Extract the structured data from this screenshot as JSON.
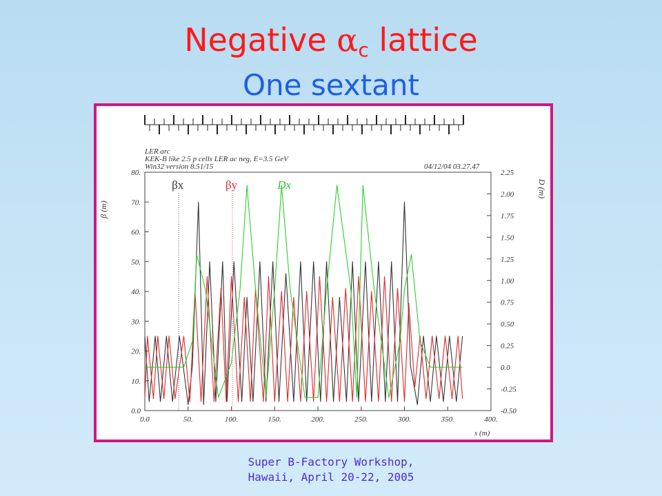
{
  "slide": {
    "title_prefix": "Negative ",
    "title_symbol": "α",
    "title_subscript": "c",
    "title_suffix": " lattice",
    "subtitle": "One sextant",
    "footer_line1": "Super B-Factory Workshop,",
    "footer_line2": "Hawaii, April 20-22, 2005"
  },
  "plot_header": {
    "line1": "LER arc",
    "line2": "KEK-B like 2.5 p cells LER ac neg, E=3.5 GeV",
    "line3": "Win32 version 8.51/15",
    "datestamp": "04/12/04  03.27.47"
  },
  "chart_data": {
    "type": "line",
    "xlabel": "s (m)",
    "ylabel_left": "β (m)",
    "ylabel_right": "D (m)",
    "xlim": [
      0,
      400
    ],
    "ylim_left": [
      0,
      80
    ],
    "ylim_right": [
      -0.5,
      2.25
    ],
    "x_ticks": [
      "0.0",
      "50.",
      "100.",
      "150.",
      "200.",
      "250.",
      "300.",
      "350.",
      "400."
    ],
    "y_left_ticks": [
      "0.0",
      "10.",
      "20.",
      "30.",
      "40.",
      "50.",
      "60.",
      "70.",
      "80."
    ],
    "y_right_ticks": [
      "-0.50",
      "-0.25",
      "0.0",
      "0.25",
      "0.50",
      "0.75",
      "1.00",
      "1.25",
      "1.50",
      "1.75",
      "2.00",
      "2.25"
    ],
    "legend": [
      {
        "label": "βx",
        "color": "#333333"
      },
      {
        "label": "βy",
        "color": "#e0262b"
      },
      {
        "label": "Dx",
        "color": "#2bcf2b"
      }
    ],
    "series": [
      {
        "name": "βx",
        "color": "#333333",
        "axis": "left",
        "x": [
          0,
          5,
          12,
          18,
          25,
          32,
          40,
          50,
          55,
          62,
          68,
          75,
          82,
          90,
          95,
          103,
          112,
          118,
          125,
          133,
          140,
          148,
          155,
          163,
          172,
          180,
          187,
          195,
          203,
          210,
          218,
          225,
          233,
          240,
          247,
          255,
          262,
          270,
          278,
          285,
          292,
          300,
          307,
          315,
          322,
          330,
          337,
          345,
          352,
          360,
          367
        ],
        "y": [
          25,
          3,
          25,
          3,
          25,
          3,
          25,
          2,
          15,
          70,
          2,
          50,
          3,
          50,
          3,
          50,
          3,
          38,
          3,
          50,
          3,
          50,
          3,
          46,
          3,
          50,
          3,
          50,
          3,
          50,
          3,
          38,
          3,
          50,
          3,
          50,
          3,
          50,
          3,
          50,
          3,
          70,
          15,
          2,
          25,
          3,
          25,
          3,
          25,
          3,
          25
        ]
      },
      {
        "name": "βy",
        "color": "#e0262b",
        "axis": "left",
        "x": [
          0,
          3,
          10,
          15,
          22,
          28,
          35,
          45,
          52,
          58,
          65,
          72,
          80,
          88,
          94,
          100,
          108,
          115,
          122,
          128,
          137,
          143,
          150,
          158,
          165,
          172,
          180,
          187,
          195,
          202,
          210,
          217,
          225,
          232,
          240,
          247,
          255,
          262,
          270,
          277,
          285,
          292,
          300,
          305,
          312,
          318,
          325,
          332,
          340,
          347,
          355,
          362,
          367
        ],
        "y": [
          4,
          25,
          4,
          25,
          4,
          25,
          4,
          25,
          3,
          40,
          3,
          45,
          3,
          41,
          3,
          45,
          3,
          38,
          3,
          41,
          3,
          45,
          3,
          40,
          3,
          38,
          3,
          40,
          3,
          45,
          3,
          38,
          3,
          41,
          3,
          45,
          3,
          40,
          3,
          45,
          3,
          41,
          3,
          36,
          8,
          25,
          4,
          25,
          4,
          25,
          4,
          25,
          4
        ]
      },
      {
        "name": "Dx",
        "color": "#2bcf2b",
        "axis": "right",
        "x": [
          0,
          45,
          55,
          60,
          70,
          85,
          100,
          110,
          118,
          128,
          140,
          150,
          158,
          168,
          185,
          200,
          210,
          222,
          238,
          245,
          252,
          265,
          282,
          295,
          300,
          308,
          318,
          330,
          367
        ],
        "y": [
          0.0,
          0.0,
          0.3,
          1.3,
          0.9,
          -0.35,
          0.05,
          0.9,
          2.1,
          0.9,
          -0.35,
          0.9,
          2.1,
          0.9,
          -0.35,
          -0.35,
          0.9,
          2.1,
          0.9,
          -0.35,
          2.1,
          0.9,
          -0.35,
          0.3,
          0.9,
          1.3,
          0.3,
          0.0,
          0.0
        ]
      }
    ]
  }
}
